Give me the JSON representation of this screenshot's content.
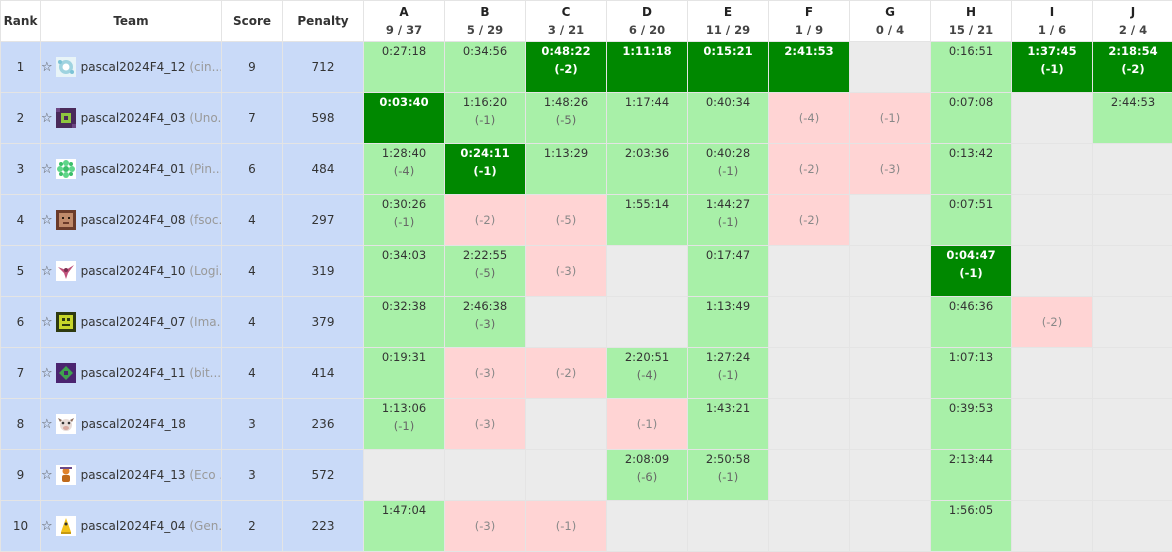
{
  "headers": {
    "rank": "Rank",
    "team": "Team",
    "score": "Score",
    "penalty": "Penalty"
  },
  "problems": [
    {
      "label": "A",
      "stat": "9 / 37"
    },
    {
      "label": "B",
      "stat": "5 / 29"
    },
    {
      "label": "C",
      "stat": "3 / 21"
    },
    {
      "label": "D",
      "stat": "6 / 20"
    },
    {
      "label": "E",
      "stat": "11 / 29"
    },
    {
      "label": "F",
      "stat": "1 / 9"
    },
    {
      "label": "G",
      "stat": "0 / 4"
    },
    {
      "label": "H",
      "stat": "15 / 21"
    },
    {
      "label": "I",
      "stat": "1 / 6"
    },
    {
      "label": "J",
      "stat": "2 / 4"
    }
  ],
  "colors": {
    "solved": "#a8f0a8",
    "first_solve": "#008800",
    "failed": "#ffd4d4",
    "empty": "#ebebeb",
    "team_bg": "#c9daf8"
  },
  "rows": [
    {
      "rank": "1",
      "name": "pascal2024F4_12",
      "aff": "(cin...",
      "score": "9",
      "penalty": "712",
      "avatar": "icon-blue-white",
      "cells": [
        {
          "s": "ok",
          "t": "0:27:18",
          "n": ""
        },
        {
          "s": "ok",
          "t": "0:34:56",
          "n": ""
        },
        {
          "s": "fb",
          "t": "0:48:22",
          "n": "(-2)"
        },
        {
          "s": "fb",
          "t": "1:11:18",
          "n": ""
        },
        {
          "s": "fb",
          "t": "0:15:21",
          "n": ""
        },
        {
          "s": "fb",
          "t": "2:41:53",
          "n": ""
        },
        {
          "s": "empty",
          "t": "",
          "n": ""
        },
        {
          "s": "ok",
          "t": "0:16:51",
          "n": ""
        },
        {
          "s": "fb",
          "t": "1:37:45",
          "n": "(-1)"
        },
        {
          "s": "fb",
          "t": "2:18:54",
          "n": "(-2)"
        }
      ]
    },
    {
      "rank": "2",
      "name": "pascal2024F4_03",
      "aff": "(Uno...",
      "score": "7",
      "penalty": "598",
      "avatar": "icon-purple-green",
      "cells": [
        {
          "s": "fb",
          "t": "0:03:40",
          "n": ""
        },
        {
          "s": "ok",
          "t": "1:16:20",
          "n": "(-1)"
        },
        {
          "s": "ok",
          "t": "1:48:26",
          "n": "(-5)"
        },
        {
          "s": "ok",
          "t": "1:17:44",
          "n": ""
        },
        {
          "s": "ok",
          "t": "0:40:34",
          "n": ""
        },
        {
          "s": "fail",
          "t": "",
          "n": "(-4)"
        },
        {
          "s": "fail",
          "t": "",
          "n": "(-1)"
        },
        {
          "s": "ok",
          "t": "0:07:08",
          "n": ""
        },
        {
          "s": "empty",
          "t": "",
          "n": ""
        },
        {
          "s": "ok",
          "t": "2:44:53",
          "n": ""
        }
      ]
    },
    {
      "rank": "3",
      "name": "pascal2024F4_01",
      "aff": "(Pin...",
      "score": "6",
      "penalty": "484",
      "avatar": "icon-green-flower",
      "cells": [
        {
          "s": "ok",
          "t": "1:28:40",
          "n": "(-4)"
        },
        {
          "s": "fb",
          "t": "0:24:11",
          "n": "(-1)"
        },
        {
          "s": "ok",
          "t": "1:13:29",
          "n": ""
        },
        {
          "s": "ok",
          "t": "2:03:36",
          "n": ""
        },
        {
          "s": "ok",
          "t": "0:40:28",
          "n": "(-1)"
        },
        {
          "s": "fail",
          "t": "",
          "n": "(-2)"
        },
        {
          "s": "fail",
          "t": "",
          "n": "(-3)"
        },
        {
          "s": "ok",
          "t": "0:13:42",
          "n": ""
        },
        {
          "s": "empty",
          "t": "",
          "n": ""
        },
        {
          "s": "empty",
          "t": "",
          "n": ""
        }
      ]
    },
    {
      "rank": "4",
      "name": "pascal2024F4_08",
      "aff": "(fsoc...",
      "score": "4",
      "penalty": "297",
      "avatar": "icon-brown-face",
      "cells": [
        {
          "s": "ok",
          "t": "0:30:26",
          "n": "(-1)"
        },
        {
          "s": "fail",
          "t": "",
          "n": "(-2)"
        },
        {
          "s": "fail",
          "t": "",
          "n": "(-5)"
        },
        {
          "s": "ok",
          "t": "1:55:14",
          "n": ""
        },
        {
          "s": "ok",
          "t": "1:44:27",
          "n": "(-1)"
        },
        {
          "s": "fail",
          "t": "",
          "n": "(-2)"
        },
        {
          "s": "empty",
          "t": "",
          "n": ""
        },
        {
          "s": "ok",
          "t": "0:07:51",
          "n": ""
        },
        {
          "s": "empty",
          "t": "",
          "n": ""
        },
        {
          "s": "empty",
          "t": "",
          "n": ""
        }
      ]
    },
    {
      "rank": "5",
      "name": "pascal2024F4_10",
      "aff": "(Logi...",
      "score": "4",
      "penalty": "319",
      "avatar": "icon-pink-bird",
      "cells": [
        {
          "s": "ok",
          "t": "0:34:03",
          "n": ""
        },
        {
          "s": "ok",
          "t": "2:22:55",
          "n": "(-5)"
        },
        {
          "s": "fail",
          "t": "",
          "n": "(-3)"
        },
        {
          "s": "empty",
          "t": "",
          "n": ""
        },
        {
          "s": "ok",
          "t": "0:17:47",
          "n": ""
        },
        {
          "s": "empty",
          "t": "",
          "n": ""
        },
        {
          "s": "empty",
          "t": "",
          "n": ""
        },
        {
          "s": "fb",
          "t": "0:04:47",
          "n": "(-1)"
        },
        {
          "s": "empty",
          "t": "",
          "n": ""
        },
        {
          "s": "empty",
          "t": "",
          "n": ""
        }
      ]
    },
    {
      "rank": "6",
      "name": "pascal2024F4_07",
      "aff": "(Ima...",
      "score": "4",
      "penalty": "379",
      "avatar": "icon-yellow-green",
      "cells": [
        {
          "s": "ok",
          "t": "0:32:38",
          "n": ""
        },
        {
          "s": "ok",
          "t": "2:46:38",
          "n": "(-3)"
        },
        {
          "s": "empty",
          "t": "",
          "n": ""
        },
        {
          "s": "empty",
          "t": "",
          "n": ""
        },
        {
          "s": "ok",
          "t": "1:13:49",
          "n": ""
        },
        {
          "s": "empty",
          "t": "",
          "n": ""
        },
        {
          "s": "empty",
          "t": "",
          "n": ""
        },
        {
          "s": "ok",
          "t": "0:46:36",
          "n": ""
        },
        {
          "s": "fail",
          "t": "",
          "n": "(-2)"
        },
        {
          "s": "empty",
          "t": "",
          "n": ""
        }
      ]
    },
    {
      "rank": "7",
      "name": "pascal2024F4_11",
      "aff": "(bit...",
      "score": "4",
      "penalty": "414",
      "avatar": "icon-purple-green2",
      "cells": [
        {
          "s": "ok",
          "t": "0:19:31",
          "n": ""
        },
        {
          "s": "fail",
          "t": "",
          "n": "(-3)"
        },
        {
          "s": "fail",
          "t": "",
          "n": "(-2)"
        },
        {
          "s": "ok",
          "t": "2:20:51",
          "n": "(-4)"
        },
        {
          "s": "ok",
          "t": "1:27:24",
          "n": "(-1)"
        },
        {
          "s": "empty",
          "t": "",
          "n": ""
        },
        {
          "s": "empty",
          "t": "",
          "n": ""
        },
        {
          "s": "ok",
          "t": "1:07:13",
          "n": ""
        },
        {
          "s": "empty",
          "t": "",
          "n": ""
        },
        {
          "s": "empty",
          "t": "",
          "n": ""
        }
      ]
    },
    {
      "rank": "8",
      "name": "pascal2024F4_18",
      "aff": "",
      "score": "3",
      "penalty": "236",
      "avatar": "icon-cow",
      "cells": [
        {
          "s": "ok",
          "t": "1:13:06",
          "n": "(-1)"
        },
        {
          "s": "fail",
          "t": "",
          "n": "(-3)"
        },
        {
          "s": "empty",
          "t": "",
          "n": ""
        },
        {
          "s": "fail",
          "t": "",
          "n": "(-1)"
        },
        {
          "s": "ok",
          "t": "1:43:21",
          "n": ""
        },
        {
          "s": "empty",
          "t": "",
          "n": ""
        },
        {
          "s": "empty",
          "t": "",
          "n": ""
        },
        {
          "s": "ok",
          "t": "0:39:53",
          "n": ""
        },
        {
          "s": "empty",
          "t": "",
          "n": ""
        },
        {
          "s": "empty",
          "t": "",
          "n": ""
        }
      ]
    },
    {
      "rank": "9",
      "name": "pascal2024F4_13",
      "aff": "(Eco ...",
      "score": "3",
      "penalty": "572",
      "avatar": "icon-orange-figure",
      "cells": [
        {
          "s": "empty",
          "t": "",
          "n": ""
        },
        {
          "s": "empty",
          "t": "",
          "n": ""
        },
        {
          "s": "empty",
          "t": "",
          "n": ""
        },
        {
          "s": "ok",
          "t": "2:08:09",
          "n": "(-6)"
        },
        {
          "s": "ok",
          "t": "2:50:58",
          "n": "(-1)"
        },
        {
          "s": "empty",
          "t": "",
          "n": ""
        },
        {
          "s": "empty",
          "t": "",
          "n": ""
        },
        {
          "s": "ok",
          "t": "2:13:44",
          "n": ""
        },
        {
          "s": "empty",
          "t": "",
          "n": ""
        },
        {
          "s": "empty",
          "t": "",
          "n": ""
        }
      ]
    },
    {
      "rank": "10",
      "name": "pascal2024F4_04",
      "aff": "(Gen...",
      "score": "2",
      "penalty": "223",
      "avatar": "icon-yellow-figure",
      "cells": [
        {
          "s": "ok",
          "t": "1:47:04",
          "n": ""
        },
        {
          "s": "fail",
          "t": "",
          "n": "(-3)"
        },
        {
          "s": "fail",
          "t": "",
          "n": "(-1)"
        },
        {
          "s": "empty",
          "t": "",
          "n": ""
        },
        {
          "s": "empty",
          "t": "",
          "n": ""
        },
        {
          "s": "empty",
          "t": "",
          "n": ""
        },
        {
          "s": "empty",
          "t": "",
          "n": ""
        },
        {
          "s": "ok",
          "t": "1:56:05",
          "n": ""
        },
        {
          "s": "empty",
          "t": "",
          "n": ""
        },
        {
          "s": "empty",
          "t": "",
          "n": ""
        }
      ]
    }
  ]
}
